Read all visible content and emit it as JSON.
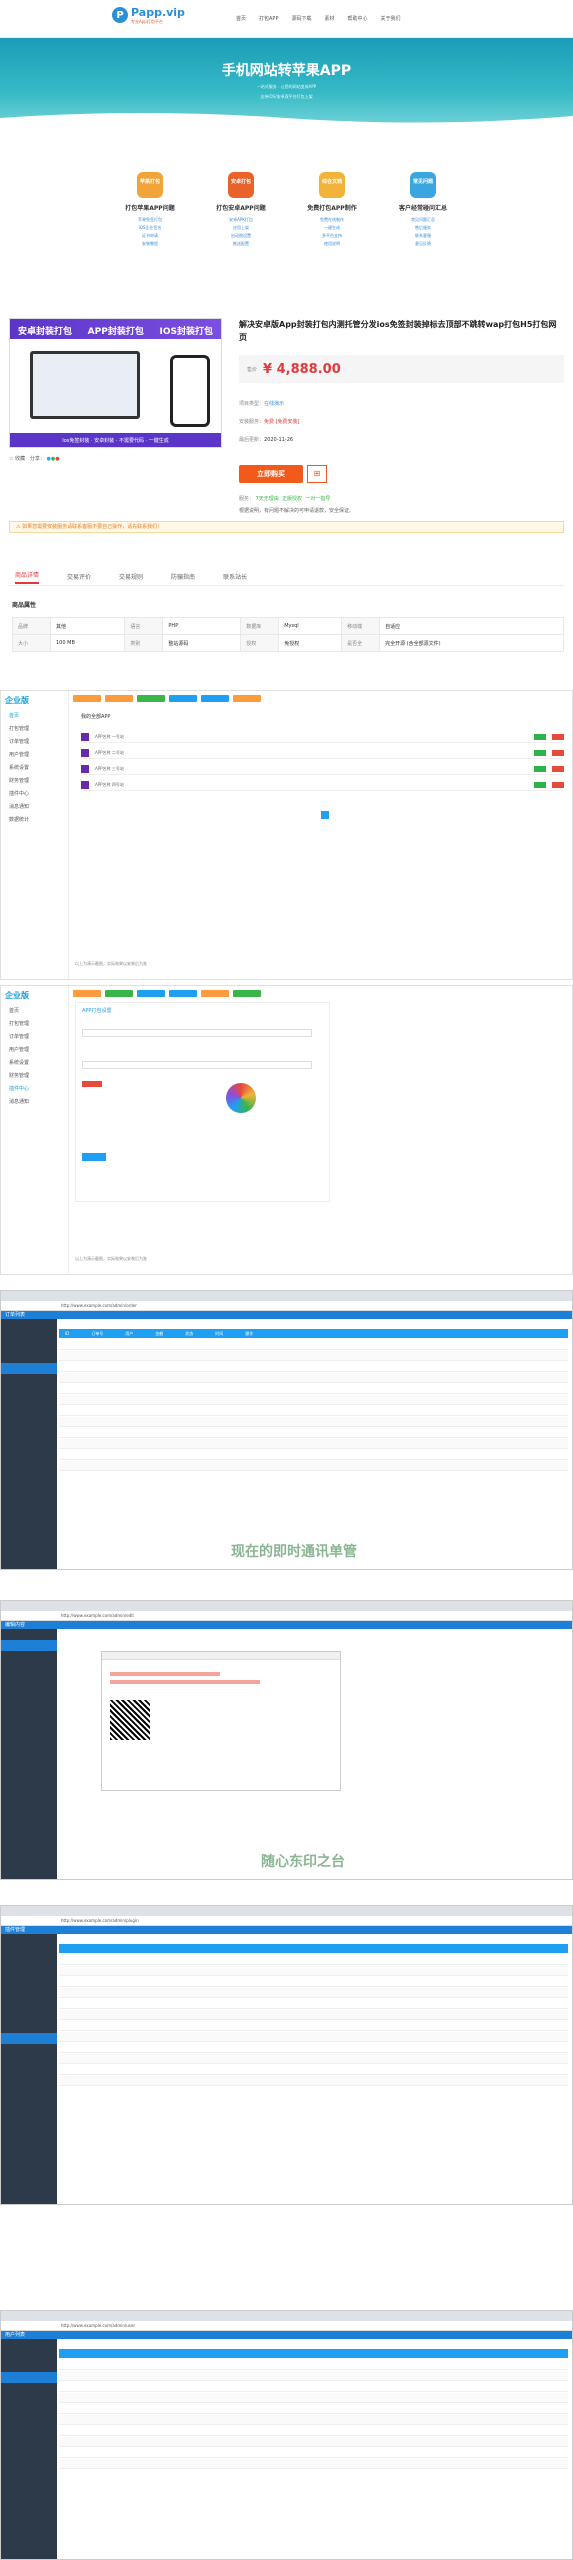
{
  "nav": {
    "logo_mark": "P",
    "logo_text": "Papp.vip",
    "logo_sub": "专业App打包平台",
    "menu": [
      "首页",
      "打包APP",
      "源码下载",
      "素材",
      "帮助中心",
      "关于我们"
    ]
  },
  "hero": {
    "title": "手机网站转苹果APP",
    "lines": [
      "一站式服务 · 让您的网站变成APP",
      "支持iOS/安卓双平台打包上架"
    ]
  },
  "features": [
    {
      "badge": "苹果打包",
      "title": "打包苹果APP问题",
      "color": "#f2a33a",
      "desc": [
        "苹果免签打包",
        "iOS企业签名",
        "证书申请",
        "安装教程"
      ]
    },
    {
      "badge": "安卓打包",
      "title": "打包安卓APP问题",
      "color": "#e8622a",
      "desc": [
        "安卓APK打包",
        "应用上架",
        "启动图设置",
        "推送配置"
      ]
    },
    {
      "badge": "综合文档",
      "title": "免费打包APP制作",
      "color": "#f2b33a",
      "desc": [
        "免费在线制作",
        "一键生成",
        "多平台支持",
        "使用说明"
      ]
    },
    {
      "badge": "常见问题",
      "title": "客户经常碰问汇总",
      "color": "#3aa6e0",
      "desc": [
        "常见问题汇总",
        "售后服务",
        "联系客服",
        "意见反馈"
      ]
    }
  ],
  "banner": {
    "left": "安卓封装打包",
    "mid": "APP封装打包",
    "right": "IOS封装打包",
    "bottom": "Ios免签封装 · 安卓封装 · 不需要代码 · 一键生成"
  },
  "product": {
    "title": "解决安卓版App封装打包内测托管分发ios免签封装掉标去顶部不跳转wap打包H5打包网页",
    "price_label": "售价",
    "price": "¥ 4,888.00",
    "type_label": "项目类型：",
    "type_value": "在线演示",
    "mode_label": "安装服务：",
    "mode_value": "免费 [免费安装]",
    "update_label": "最后更新：",
    "update_value": "2020-11-26",
    "buy": "立即购买",
    "cart": "⊞",
    "share": "分享：",
    "fav": "收藏",
    "service_label": "服务：",
    "services": [
      "7天无理由",
      "正版授权",
      "一对一指导"
    ],
    "note": "根据说明，有问题不解决的可申请退款，安全保证。"
  },
  "warning": "⚠ 如果您需要安装服务请联系客服不要自己操作，请先联系我们！",
  "tabs": [
    "商品详情",
    "交易评价",
    "交易规则",
    "防骗指南",
    "联系站长"
  ],
  "attrs": {
    "heading": "商品属性",
    "rows": [
      [
        "品牌",
        "其他",
        "语言",
        "PHP",
        "数据库",
        "Mysql",
        "移动端",
        "自适应"
      ],
      [
        "大小",
        "100 MB",
        "类别",
        "整站源码",
        "授权",
        "免授权",
        "是否全",
        "完全开源 (含全部源文件)"
      ]
    ]
  },
  "shot1": {
    "brand": "企业版",
    "menu": [
      "首页",
      "打包管理",
      "订单管理",
      "用户管理",
      "系统设置",
      "财务管理",
      "插件中心",
      "消息通知",
      "数据统计"
    ],
    "title": "我的全部APP",
    "rows": [
      "APP名称 一号站",
      "APP名称 二号站",
      "APP名称 三号站",
      "APP名称 四号站"
    ],
    "caption": "以上为演示截图，实际效果以安装后为准"
  },
  "shot2": {
    "brand": "企业版",
    "menu": [
      "首页",
      "打包管理",
      "订单管理",
      "用户管理",
      "系统设置",
      "财务管理",
      "插件中心",
      "消息通知"
    ],
    "title": "APP打包设置",
    "caption": "以上为演示截图，实际效果以安装后为准"
  },
  "shot3": {
    "title": "订单列表",
    "header": [
      "ID",
      "订单号",
      "用户",
      "金额",
      "状态",
      "时间",
      "操作"
    ],
    "overlay": "现在的即时通讯单管",
    "rows": 12
  },
  "shot4": {
    "title": "编辑内容",
    "overlay": "随心东印之台"
  },
  "shot5": {
    "title": "插件管理",
    "rows": 12
  },
  "shot6": {
    "title": "用户列表",
    "rows": 10
  }
}
